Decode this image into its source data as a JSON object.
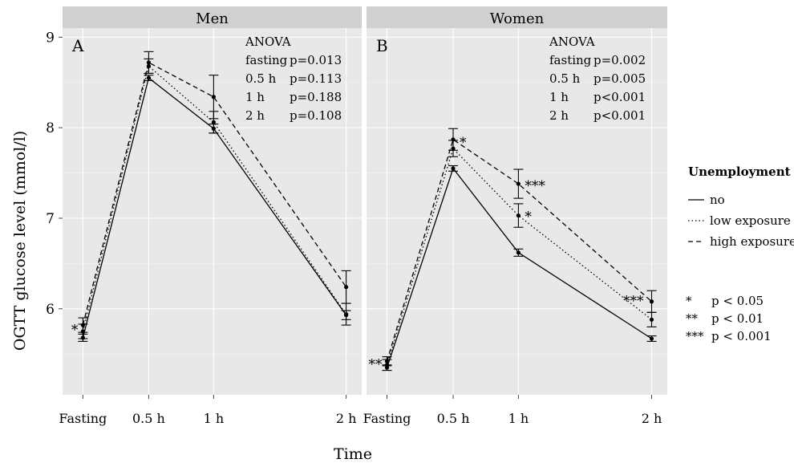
{
  "chart_data": {
    "type": "line",
    "x": [
      "Fasting",
      "0.5 h",
      "1 h",
      "2 h"
    ],
    "xlabel": "Time",
    "ylabel": "OGTT glucose level (mmol/l)",
    "ylim": [
      5.05,
      9.1
    ],
    "yticks": [
      "6",
      "7",
      "8",
      "9"
    ],
    "grid": true,
    "legend": {
      "title": "Unemployment",
      "placement": "right",
      "entries": [
        {
          "label": "no",
          "style": "solid"
        },
        {
          "label": "low exposure",
          "style": "dotted"
        },
        {
          "label": "high exposure",
          "style": "dashed"
        }
      ]
    },
    "significance_legend": [
      {
        "symbol": "*",
        "text": "p < 0.05"
      },
      {
        "symbol": "**",
        "text": "p < 0.01"
      },
      {
        "symbol": "***",
        "text": "p < 0.001"
      }
    ],
    "panels": [
      {
        "strip": "Men",
        "letter": "A",
        "anova_title": "ANOVA",
        "anova": [
          {
            "label": "fasting",
            "value": "p=0.013"
          },
          {
            "label": "0.5 h",
            "value": "p=0.113"
          },
          {
            "label": "1 h",
            "value": "p=0.188"
          },
          {
            "label": "2 h",
            "value": "p=0.108"
          }
        ],
        "series": [
          {
            "name": "no",
            "style": "solid",
            "values": [
              5.68,
              8.55,
              7.99,
              5.93
            ],
            "err": [
              0.04,
              0.03,
              0.05,
              0.05
            ]
          },
          {
            "name": "low exposure",
            "style": "dotted",
            "values": [
              5.75,
              8.68,
              8.06,
              5.94
            ],
            "err": [
              0.08,
              0.08,
              0.12,
              0.12
            ]
          },
          {
            "name": "high exposure",
            "style": "dashed",
            "values": [
              5.82,
              8.72,
              8.34,
              6.24
            ],
            "err": [
              0.08,
              0.12,
              0.24,
              0.18
            ]
          }
        ],
        "annotations": [
          {
            "text": "*",
            "x": "Fasting",
            "y": 5.78
          }
        ]
      },
      {
        "strip": "Women",
        "letter": "B",
        "anova_title": "ANOVA",
        "anova": [
          {
            "label": "fasting",
            "value": "p=0.002"
          },
          {
            "label": "0.5 h",
            "value": "p=0.005"
          },
          {
            "label": "1 h",
            "value": "p<0.001"
          },
          {
            "label": "2 h",
            "value": "p<0.001"
          }
        ],
        "series": [
          {
            "name": "no",
            "style": "solid",
            "values": [
              5.35,
              7.55,
              6.62,
              5.67
            ],
            "err": [
              0.03,
              0.03,
              0.04,
              0.03
            ]
          },
          {
            "name": "low exposure",
            "style": "dotted",
            "values": [
              5.38,
              7.77,
              7.03,
              5.88
            ],
            "err": [
              0.06,
              0.09,
              0.13,
              0.08
            ]
          },
          {
            "name": "high exposure",
            "style": "dashed",
            "values": [
              5.42,
              7.87,
              7.38,
              6.08
            ],
            "err": [
              0.05,
              0.12,
              0.16,
              0.12
            ]
          }
        ],
        "annotations": [
          {
            "text": "**",
            "x": "Fasting",
            "y": 5.4
          },
          {
            "text": "*",
            "x": "0.5 h",
            "y": 7.85
          },
          {
            "text": "***",
            "x": "1 h",
            "y": 7.37
          },
          {
            "text": "*",
            "x": "1 h",
            "y": 7.03
          },
          {
            "text": "***",
            "x": "2 h",
            "y": 6.1
          }
        ]
      }
    ]
  }
}
